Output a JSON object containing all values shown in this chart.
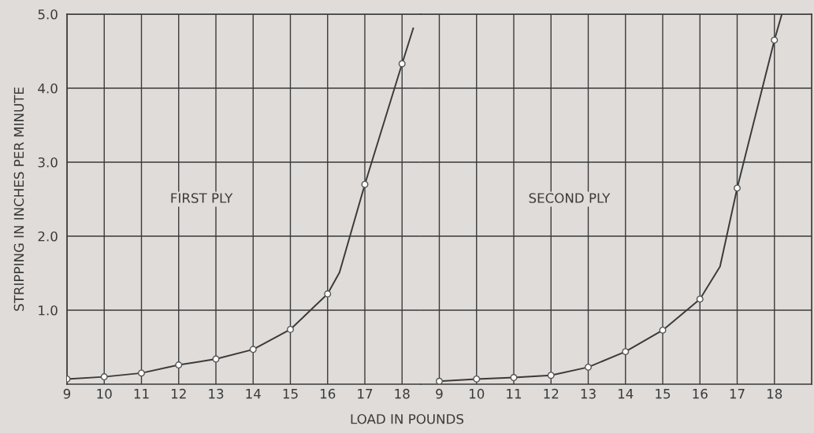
{
  "chart_data": [
    {
      "type": "line",
      "ylabel": "STRIPPING IN INCHES PER MINUTE",
      "xlabel": "LOAD IN POUNDS",
      "annotations": [
        "FIRST PLY"
      ],
      "xlim": [
        9,
        18.5
      ],
      "xticks": [
        9,
        10,
        11,
        12,
        13,
        14,
        15,
        16,
        17,
        18
      ],
      "ylim": [
        0,
        5
      ],
      "yticks": [
        {
          "value": 1,
          "label": "1.0"
        },
        {
          "value": 2,
          "label": "2.0"
        },
        {
          "value": 3,
          "label": "3.0"
        },
        {
          "value": 4,
          "label": "4.0"
        },
        {
          "value": 5,
          "label": "5.0"
        }
      ],
      "grid": true,
      "legend": false,
      "series": [
        {
          "color": "#3a3a3a",
          "marker": "none",
          "x": [
            9,
            10,
            11,
            12,
            13,
            14,
            15,
            16,
            16.32,
            17,
            18,
            18.3
          ],
          "values": [
            0.07,
            0.1,
            0.15,
            0.26,
            0.34,
            0.47,
            0.74,
            1.22,
            1.51,
            2.7,
            4.33,
            4.81
          ]
        },
        {
          "type": "scatter",
          "color": "#555555",
          "marker": "circle",
          "x": [
            9,
            10,
            11,
            12,
            13,
            14,
            15,
            16,
            17,
            18
          ],
          "values": [
            0.07,
            0.1,
            0.15,
            0.26,
            0.34,
            0.47,
            0.74,
            1.22,
            2.7,
            4.33
          ]
        }
      ]
    },
    {
      "type": "line",
      "annotations": [
        "SECOND PLY"
      ],
      "tick_labels": "x",
      "xlim": [
        8.5,
        19
      ],
      "xticks": [
        9,
        10,
        11,
        12,
        13,
        14,
        15,
        16,
        17,
        18
      ],
      "ylim": [
        0,
        5
      ],
      "yticks": [
        1,
        2,
        3,
        4,
        5
      ],
      "grid": true,
      "legend": false,
      "series": [
        {
          "color": "#3a3a3a",
          "marker": "none",
          "x": [
            9,
            10,
            11,
            12,
            13,
            14,
            15,
            16,
            16.54,
            17,
            18,
            18.2
          ],
          "values": [
            0.04,
            0.07,
            0.09,
            0.12,
            0.23,
            0.44,
            0.73,
            1.15,
            1.59,
            2.65,
            4.65,
            5.0
          ]
        },
        {
          "type": "scatter",
          "color": "#555555",
          "marker": "circle",
          "x": [
            9,
            10,
            11,
            12,
            13,
            14,
            15,
            16,
            17,
            18
          ],
          "values": [
            0.04,
            0.07,
            0.09,
            0.12,
            0.23,
            0.44,
            0.73,
            1.15,
            2.65,
            4.65
          ]
        }
      ]
    }
  ]
}
